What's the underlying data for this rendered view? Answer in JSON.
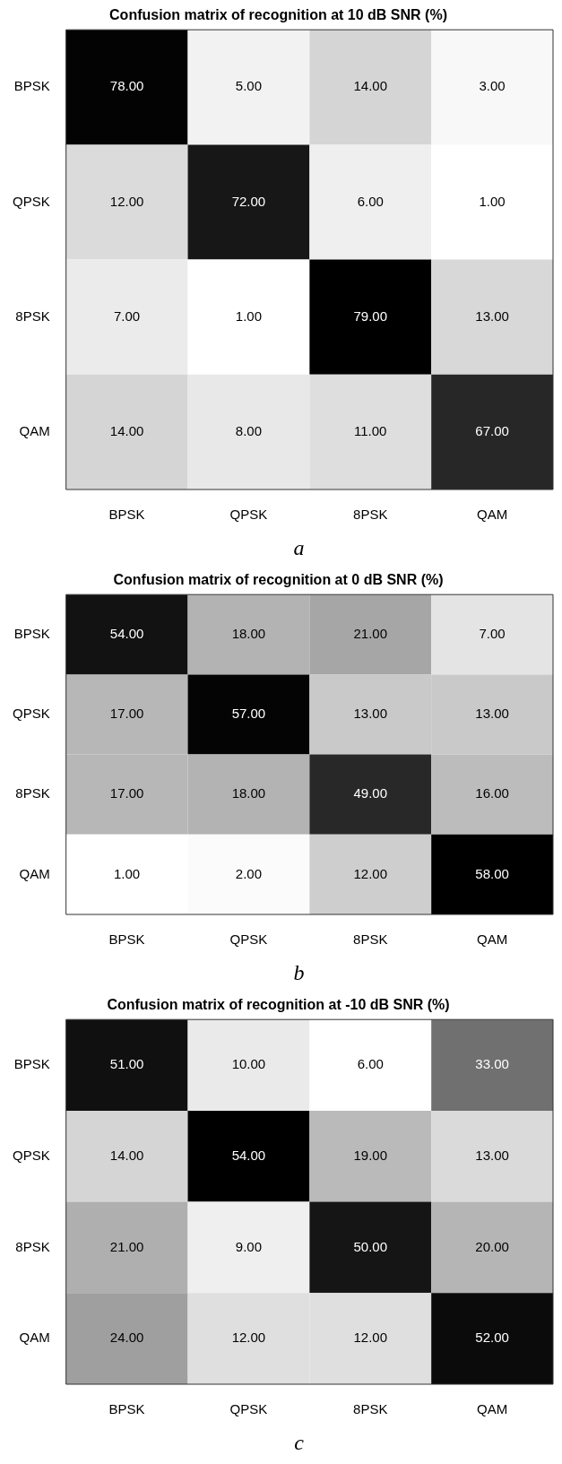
{
  "chart_data": [
    {
      "type": "heatmap",
      "title": "Confusion matrix of recognition at 10 dB SNR (%)",
      "categories": [
        "BPSK",
        "QPSK",
        "8PSK",
        "QAM"
      ],
      "y_categories": [
        "BPSK",
        "QPSK",
        "8PSK",
        "QAM"
      ],
      "cells": [
        [
          78,
          5,
          14,
          3
        ],
        [
          12,
          72,
          6,
          1
        ],
        [
          7,
          1,
          79,
          13
        ],
        [
          14,
          8,
          11,
          67
        ]
      ],
      "cell_labels": [
        [
          "78.00",
          "5.00",
          "14.00",
          "3.00"
        ],
        [
          "12.00",
          "72.00",
          "6.00",
          "1.00"
        ],
        [
          "7.00",
          "1.00",
          "79.00",
          "13.00"
        ],
        [
          "14.00",
          "8.00",
          "11.00",
          "67.00"
        ]
      ],
      "annotations": [
        "a"
      ]
    },
    {
      "type": "heatmap",
      "title": "Confusion matrix of recognition at 0 dB SNR (%)",
      "categories": [
        "BPSK",
        "QPSK",
        "8PSK",
        "QAM"
      ],
      "y_categories": [
        "BPSK",
        "QPSK",
        "8PSK",
        "QAM"
      ],
      "cells": [
        [
          54,
          18,
          21,
          7
        ],
        [
          17,
          57,
          13,
          13
        ],
        [
          17,
          18,
          49,
          16
        ],
        [
          1,
          2,
          12,
          58
        ]
      ],
      "cell_labels": [
        [
          "54.00",
          "18.00",
          "21.00",
          "7.00"
        ],
        [
          "17.00",
          "57.00",
          "13.00",
          "13.00"
        ],
        [
          "17.00",
          "18.00",
          "49.00",
          "16.00"
        ],
        [
          "1.00",
          "2.00",
          "12.00",
          "58.00"
        ]
      ],
      "annotations": [
        "b"
      ]
    },
    {
      "type": "heatmap",
      "title": "Confusion matrix of recognition at -10 dB SNR (%)",
      "categories": [
        "BPSK",
        "QPSK",
        "8PSK",
        "QAM"
      ],
      "y_categories": [
        "BPSK",
        "QPSK",
        "8PSK",
        "QAM"
      ],
      "cells": [
        [
          51,
          10,
          6,
          33
        ],
        [
          14,
          54,
          19,
          13
        ],
        [
          21,
          9,
          50,
          20
        ],
        [
          24,
          12,
          12,
          52
        ]
      ],
      "cell_labels": [
        [
          "51.00",
          "10.00",
          "6.00",
          "33.00"
        ],
        [
          "14.00",
          "54.00",
          "19.00",
          "13.00"
        ],
        [
          "21.00",
          "9.00",
          "50.00",
          "20.00"
        ],
        [
          "24.00",
          "12.00",
          "12.00",
          "52.00"
        ]
      ],
      "annotations": [
        "c"
      ]
    }
  ]
}
